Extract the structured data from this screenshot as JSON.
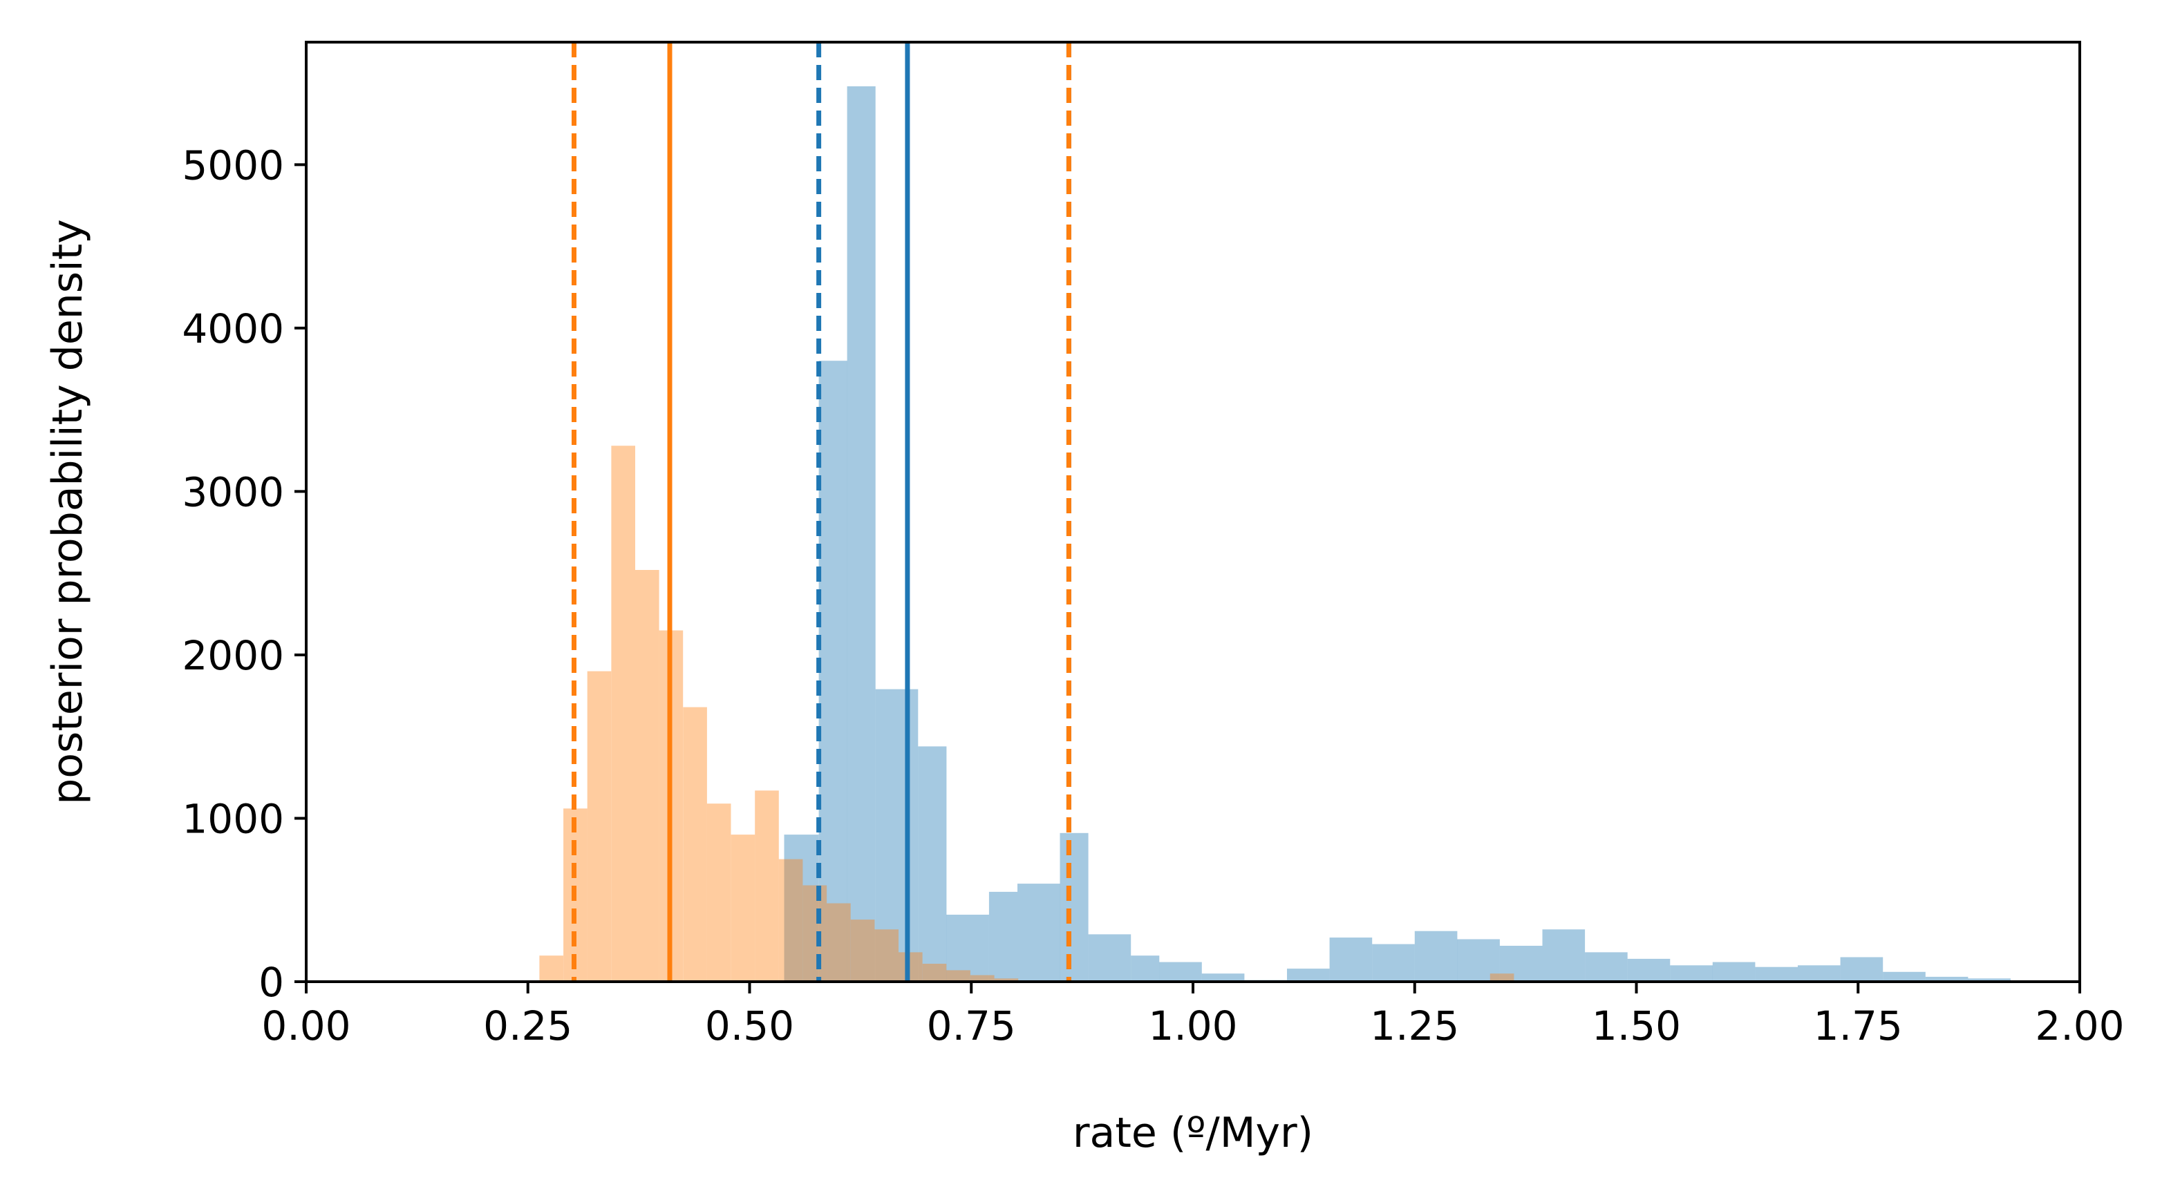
{
  "chart_data": {
    "type": "histogram",
    "title": "",
    "xlabel": "rate (º/Myr)",
    "ylabel": "posterior probability density",
    "xlim": [
      0.0,
      2.0
    ],
    "ylim": [
      0,
      5750
    ],
    "x_ticks": [
      "0.00",
      "0.25",
      "0.50",
      "0.75",
      "1.00",
      "1.25",
      "1.50",
      "1.75",
      "2.00"
    ],
    "y_ticks": [
      "0",
      "1000",
      "2000",
      "3000",
      "4000",
      "5000"
    ],
    "grid": false,
    "legend": "none",
    "series": [
      {
        "color": "#1f77b4",
        "opacity": 0.4,
        "bins": [
          {
            "x0": 0.539,
            "x1": 0.578,
            "y": 900
          },
          {
            "x0": 0.578,
            "x1": 0.61,
            "y": 3800
          },
          {
            "x0": 0.61,
            "x1": 0.642,
            "y": 5480
          },
          {
            "x0": 0.642,
            "x1": 0.69,
            "y": 1790
          },
          {
            "x0": 0.69,
            "x1": 0.722,
            "y": 1440
          },
          {
            "x0": 0.722,
            "x1": 0.77,
            "y": 410
          },
          {
            "x0": 0.77,
            "x1": 0.802,
            "y": 550
          },
          {
            "x0": 0.802,
            "x1": 0.85,
            "y": 600
          },
          {
            "x0": 0.85,
            "x1": 0.882,
            "y": 910
          },
          {
            "x0": 0.882,
            "x1": 0.93,
            "y": 290
          },
          {
            "x0": 0.93,
            "x1": 0.962,
            "y": 160
          },
          {
            "x0": 0.962,
            "x1": 1.01,
            "y": 120
          },
          {
            "x0": 1.01,
            "x1": 1.058,
            "y": 50
          },
          {
            "x0": 1.058,
            "x1": 1.106,
            "y": 10
          },
          {
            "x0": 1.106,
            "x1": 1.154,
            "y": 80
          },
          {
            "x0": 1.154,
            "x1": 1.202,
            "y": 270
          },
          {
            "x0": 1.202,
            "x1": 1.25,
            "y": 230
          },
          {
            "x0": 1.25,
            "x1": 1.298,
            "y": 310
          },
          {
            "x0": 1.298,
            "x1": 1.346,
            "y": 260
          },
          {
            "x0": 1.346,
            "x1": 1.394,
            "y": 220
          },
          {
            "x0": 1.394,
            "x1": 1.442,
            "y": 320
          },
          {
            "x0": 1.442,
            "x1": 1.49,
            "y": 180
          },
          {
            "x0": 1.49,
            "x1": 1.538,
            "y": 140
          },
          {
            "x0": 1.538,
            "x1": 1.586,
            "y": 100
          },
          {
            "x0": 1.586,
            "x1": 1.634,
            "y": 120
          },
          {
            "x0": 1.634,
            "x1": 1.682,
            "y": 90
          },
          {
            "x0": 1.682,
            "x1": 1.73,
            "y": 100
          },
          {
            "x0": 1.73,
            "x1": 1.778,
            "y": 150
          },
          {
            "x0": 1.778,
            "x1": 1.826,
            "y": 60
          },
          {
            "x0": 1.826,
            "x1": 1.874,
            "y": 30
          },
          {
            "x0": 1.874,
            "x1": 1.922,
            "y": 20
          }
        ],
        "median": 0.678,
        "interval": [
          0.578,
          0.86
        ]
      },
      {
        "color": "#ff7f0e",
        "opacity": 0.4,
        "bins": [
          {
            "x0": 0.263,
            "x1": 0.29,
            "y": 160
          },
          {
            "x0": 0.29,
            "x1": 0.317,
            "y": 1060
          },
          {
            "x0": 0.317,
            "x1": 0.344,
            "y": 1900
          },
          {
            "x0": 0.344,
            "x1": 0.371,
            "y": 3280
          },
          {
            "x0": 0.371,
            "x1": 0.398,
            "y": 2520
          },
          {
            "x0": 0.398,
            "x1": 0.425,
            "y": 2150
          },
          {
            "x0": 0.425,
            "x1": 0.452,
            "y": 1680
          },
          {
            "x0": 0.452,
            "x1": 0.479,
            "y": 1090
          },
          {
            "x0": 0.479,
            "x1": 0.506,
            "y": 900
          },
          {
            "x0": 0.506,
            "x1": 0.533,
            "y": 1170
          },
          {
            "x0": 0.533,
            "x1": 0.56,
            "y": 750
          },
          {
            "x0": 0.56,
            "x1": 0.587,
            "y": 590
          },
          {
            "x0": 0.587,
            "x1": 0.614,
            "y": 480
          },
          {
            "x0": 0.614,
            "x1": 0.641,
            "y": 380
          },
          {
            "x0": 0.641,
            "x1": 0.668,
            "y": 320
          },
          {
            "x0": 0.668,
            "x1": 0.695,
            "y": 180
          },
          {
            "x0": 0.695,
            "x1": 0.722,
            "y": 110
          },
          {
            "x0": 0.722,
            "x1": 0.749,
            "y": 70
          },
          {
            "x0": 0.749,
            "x1": 0.776,
            "y": 40
          },
          {
            "x0": 0.776,
            "x1": 0.803,
            "y": 20
          },
          {
            "x0": 1.335,
            "x1": 1.362,
            "y": 50
          }
        ],
        "median": 0.41,
        "interval": [
          0.302,
          0.86
        ]
      }
    ]
  }
}
